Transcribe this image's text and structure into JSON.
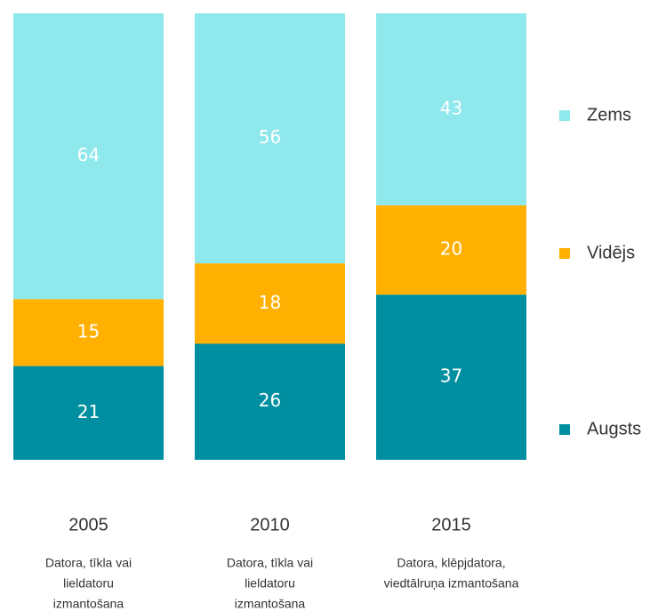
{
  "chart_data": {
    "type": "stacked_bar",
    "categories": [
      "2005",
      "2010",
      "2015"
    ],
    "descriptions": [
      [
        "Datora, tīkla vai",
        "lieldatoru",
        "izmantošana"
      ],
      [
        "Datora, tīkla vai",
        "lieldatoru",
        "izmantošana"
      ],
      [
        "Datora, klēpjdatora,",
        "viedtālruņa izmantošana"
      ]
    ],
    "series": [
      {
        "name": "Zems",
        "color": "#8ee8ec",
        "values": [
          64,
          56,
          43
        ]
      },
      {
        "name": "Vidējs",
        "color": "#ffb000",
        "values": [
          15,
          18,
          20
        ]
      },
      {
        "name": "Augsts",
        "color": "#008fa0",
        "values": [
          21,
          26,
          37
        ]
      }
    ],
    "ylim": [
      0,
      100
    ]
  }
}
